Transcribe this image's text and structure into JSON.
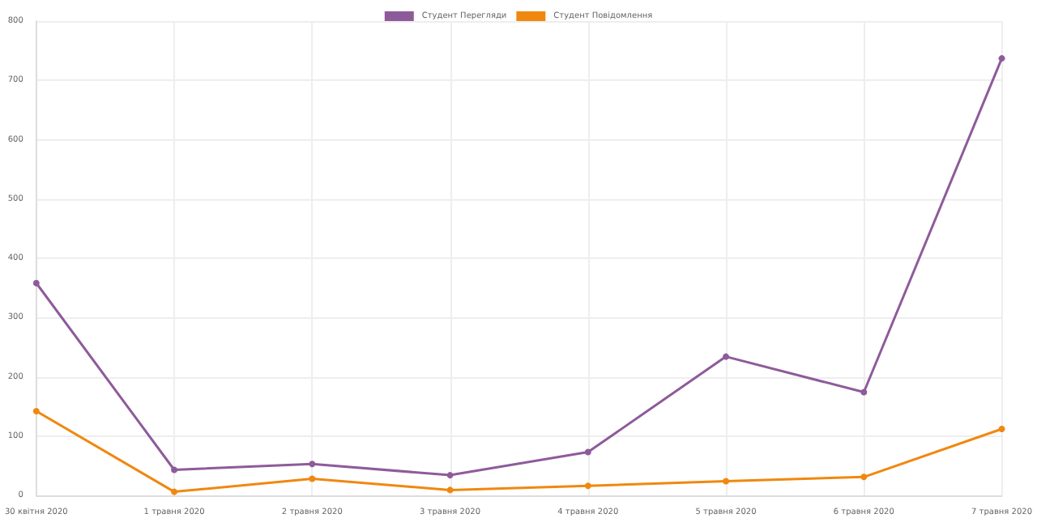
{
  "chart_data": {
    "type": "line",
    "categories": [
      "30 квітня 2020",
      "1 травня 2020",
      "2 травня 2020",
      "3 травня 2020",
      "4 травня 2020",
      "5 травня 2020",
      "6 травня 2020",
      "7 травня 2020"
    ],
    "series": [
      {
        "name": "Студент Перегляди",
        "color": "#8e5b9a",
        "values": [
          358,
          43,
          53,
          34,
          73,
          234,
          174,
          737
        ]
      },
      {
        "name": "Студент Повідомлення",
        "color": "#f0880f",
        "values": [
          142,
          6,
          28,
          9,
          16,
          24,
          31,
          112
        ]
      }
    ],
    "ylim": [
      0,
      800
    ],
    "yticks": [
      0,
      100,
      200,
      300,
      400,
      500,
      600,
      700,
      800
    ],
    "grid": true,
    "legend": "top",
    "marker": "circle",
    "line_style": "solid"
  }
}
